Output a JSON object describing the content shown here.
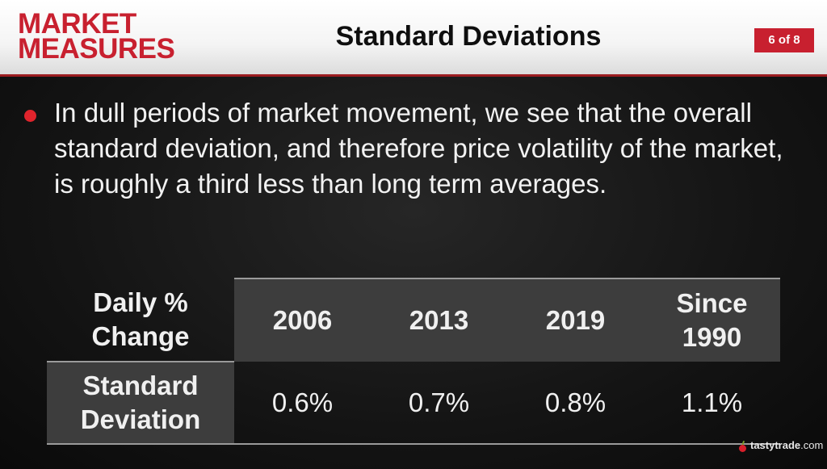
{
  "header": {
    "logo_line1": "MARKET",
    "logo_line2": "MEASURES",
    "title": "Standard Deviations",
    "page_indicator": "6 of 8"
  },
  "bullet": {
    "text": "In dull periods of market movement, we see that the overall standard deviation, and therefore price volatility of the market, is roughly a third less than long term averages."
  },
  "table": {
    "corner_line1": "Daily %",
    "corner_line2": "Change",
    "columns": [
      {
        "line1": "2006",
        "line2": ""
      },
      {
        "line1": "2013",
        "line2": ""
      },
      {
        "line1": "2019",
        "line2": ""
      },
      {
        "line1": "Since",
        "line2": "1990"
      }
    ],
    "row_label_line1": "Standard",
    "row_label_line2": "Deviation",
    "values": [
      "0.6%",
      "0.7%",
      "0.8%",
      "1.1%"
    ]
  },
  "footer": {
    "brand": "tastytrade",
    "brand_suffix": ".com"
  },
  "colors": {
    "accent": "#c8202f",
    "bullet": "#e0242c",
    "cell_fill": "#3d3d3d"
  }
}
